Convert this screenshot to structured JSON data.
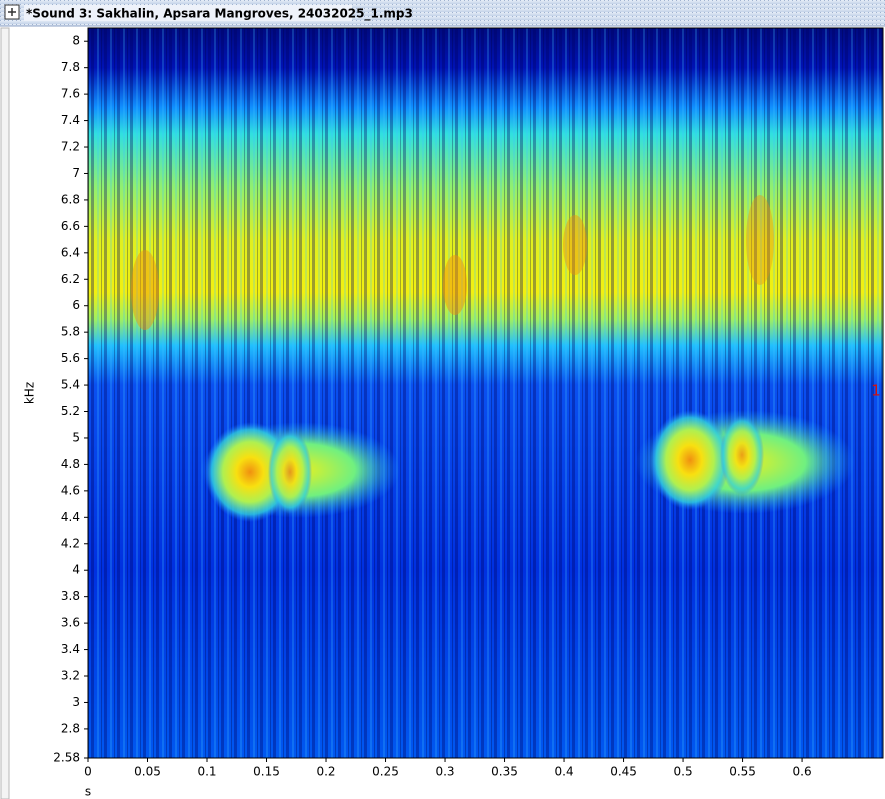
{
  "window": {
    "title": "*Sound 3: Sakhalin, Apsara Mangroves, 24032025_1.mp3"
  },
  "chart_data": {
    "type": "spectrogram",
    "xlabel": "s",
    "ylabel": "kHz",
    "xlim": [
      0,
      0.668
    ],
    "ylim": [
      2.58,
      8.1
    ],
    "xticks": [
      0,
      0.05,
      0.1,
      0.15,
      0.2,
      0.25,
      0.3,
      0.35,
      0.4,
      0.45,
      0.5,
      0.55,
      0.6
    ],
    "yticks": [
      2.58,
      2.8,
      3,
      3.2,
      3.4,
      3.6,
      3.8,
      4,
      4.2,
      4.4,
      4.6,
      4.8,
      5,
      5.2,
      5.4,
      5.6,
      5.8,
      6,
      6.2,
      6.4,
      6.6,
      6.8,
      7,
      7.2,
      7.4,
      7.6,
      7.8,
      8
    ],
    "marker": "1",
    "marker_color": "#d01010"
  }
}
